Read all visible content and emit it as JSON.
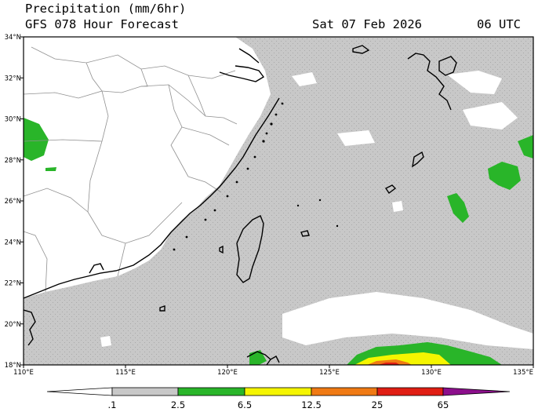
{
  "header": {
    "line1": "Precipitation (mm/6hr)",
    "line2": "GFS 078 Hour Forecast",
    "date": "Sat 07 Feb 2026",
    "time": "06 UTC"
  },
  "map": {
    "lon_range": [
      110,
      135
    ],
    "lat_range": [
      18,
      34
    ],
    "lat_ticks": [
      "34°N",
      "32°N",
      "30°N",
      "28°N",
      "26°N",
      "24°N",
      "22°N",
      "20°N",
      "18°N"
    ],
    "lon_ticks": [
      "110°E",
      "115°E",
      "120°E",
      "125°E",
      "130°E",
      "135°E"
    ],
    "colors": {
      "land": "#ffffff",
      "precip_light": "#c8c8c8",
      "precip_green": "#29b529",
      "precip_yellow": "#f5f500",
      "precip_orange": "#f07a14",
      "precip_red": "#e01e14",
      "precip_purple": "#8c0f8c"
    }
  },
  "colorbar": {
    "labels": [
      ".1",
      "2.5",
      "6.5",
      "12.5",
      "25",
      "65"
    ],
    "colors": [
      "#ffffff",
      "#c8c8c8",
      "#29b529",
      "#f5f500",
      "#f07a14",
      "#e01e14",
      "#8c0f8c"
    ]
  }
}
